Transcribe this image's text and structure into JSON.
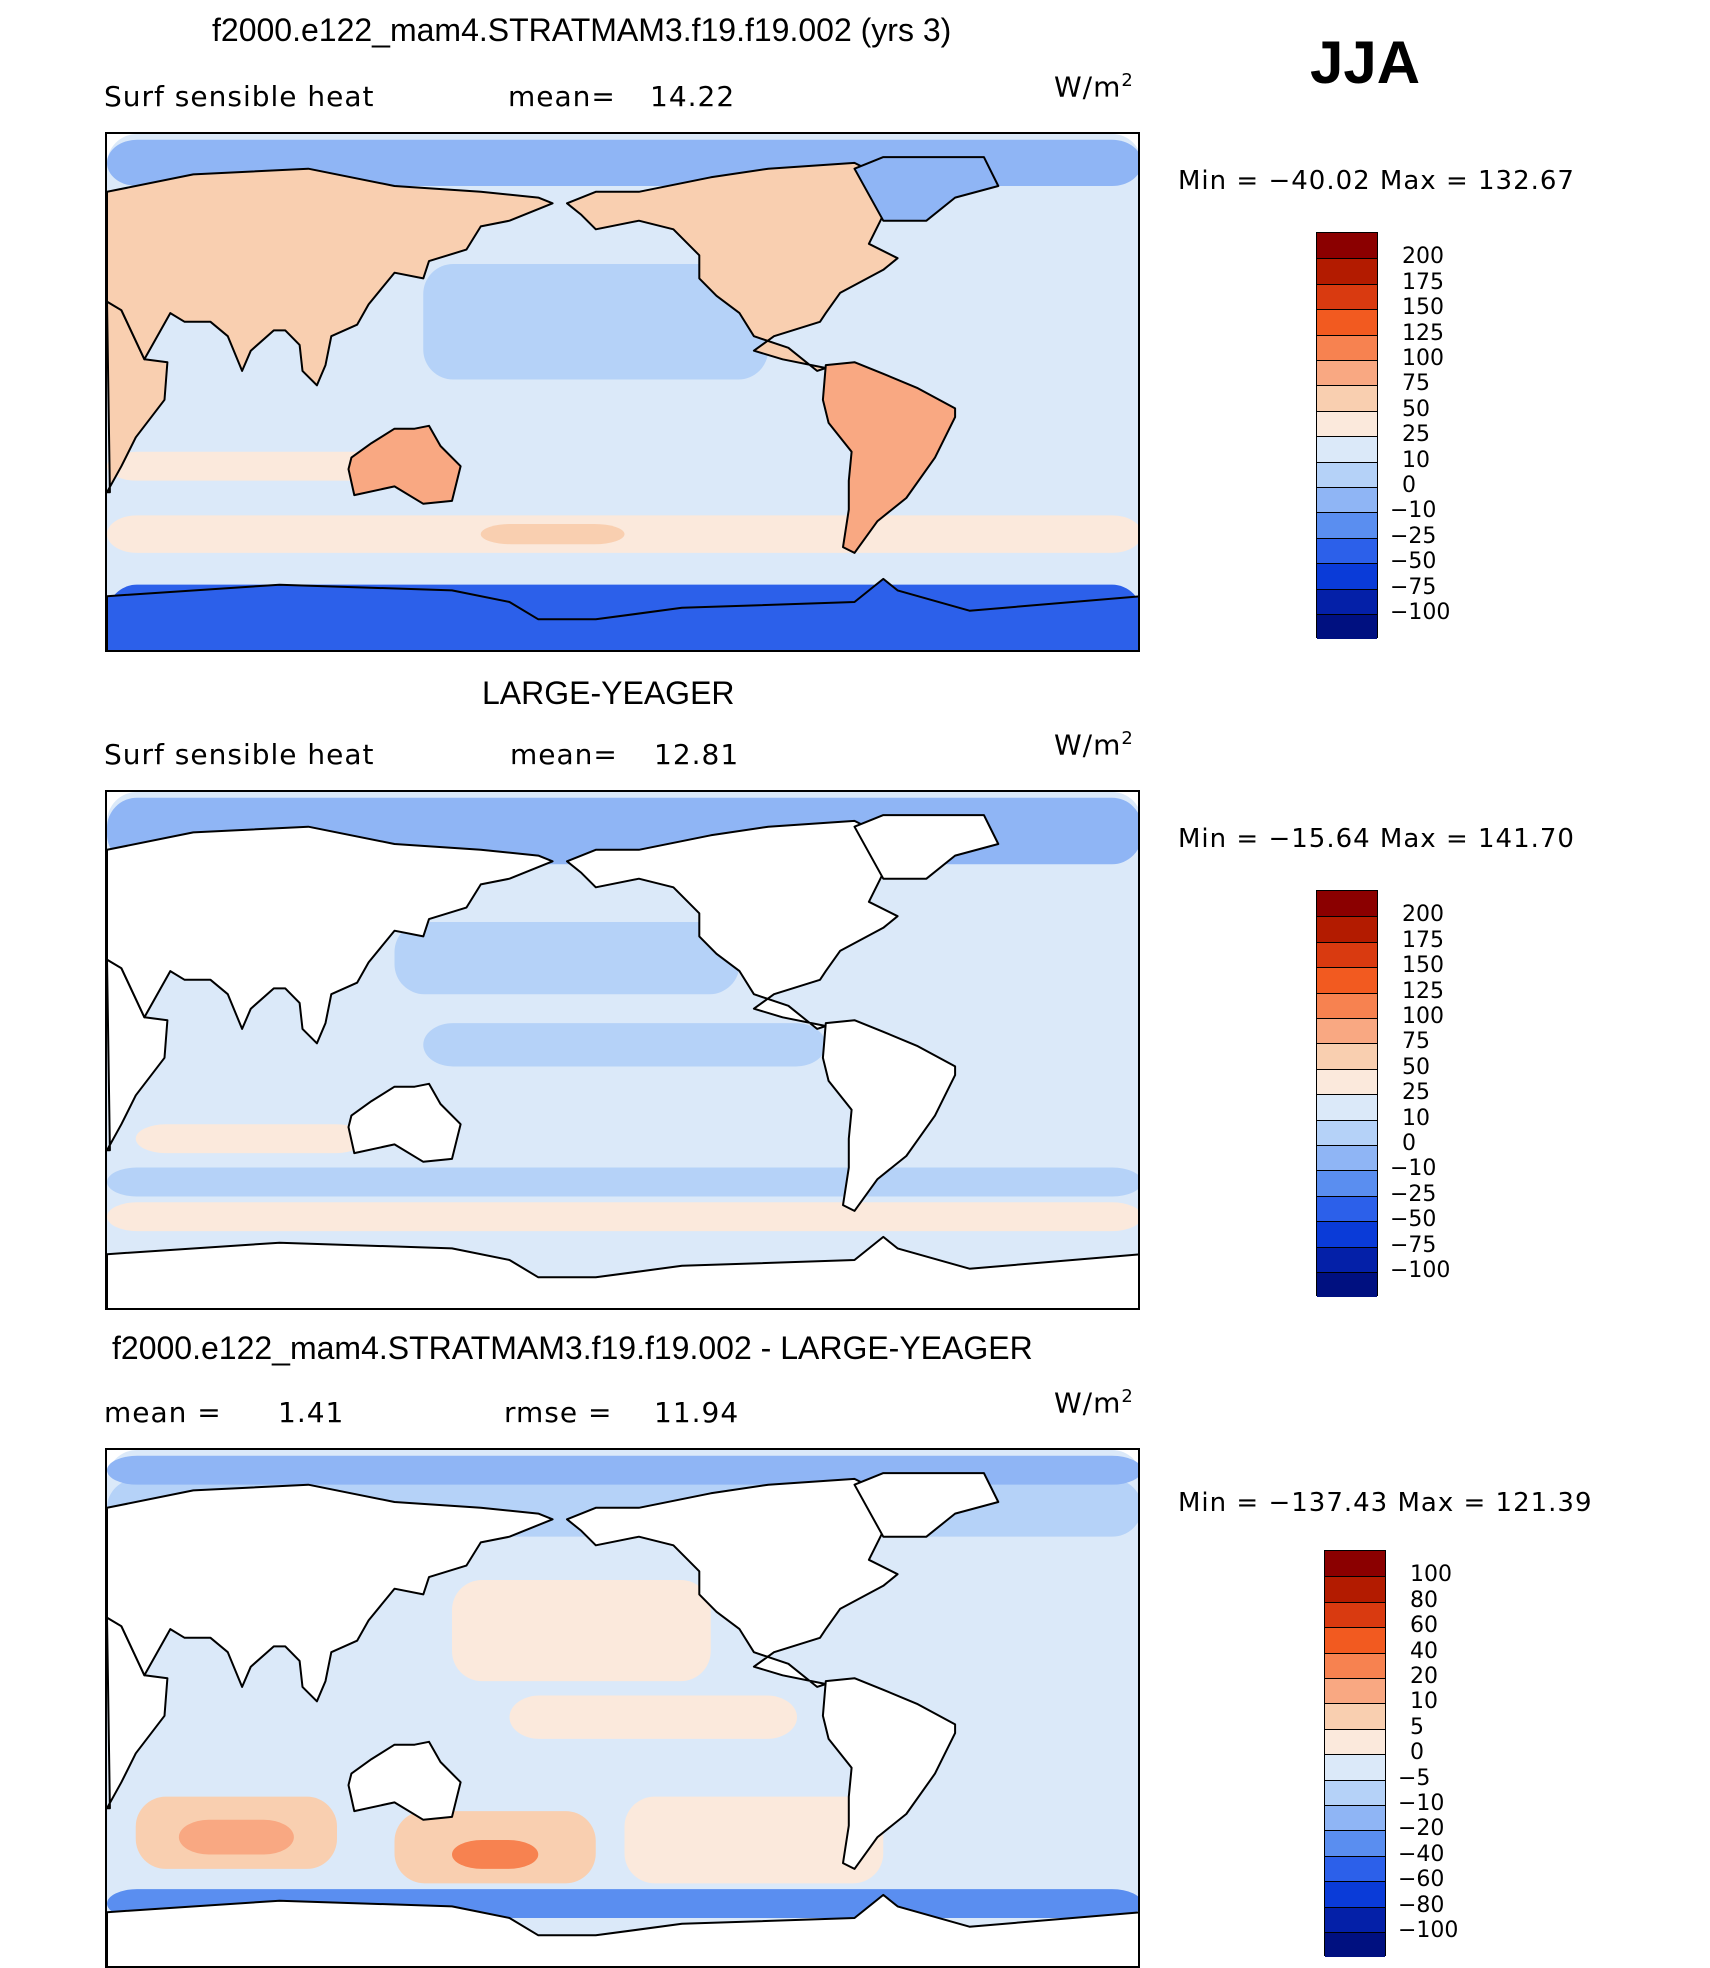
{
  "season": "JJA",
  "units_base": "W/m",
  "units_exp": "2",
  "panels": [
    {
      "title": "f2000.e122_mam4.STRATMAM3.f19.f19.002 (yrs 3)",
      "left_label": "Surf  sensible  heat",
      "stat_label": "mean=",
      "stat_value": "14.22",
      "minmax": "Min  =  −40.02  Max  =  132.67",
      "levels": [
        "200",
        "175",
        "150",
        "125",
        "100",
        "75",
        "50",
        "25",
        "10",
        "0",
        "−10",
        "−25",
        "−50",
        "−75",
        "−100"
      ],
      "colors": [
        "#8b0000",
        "#b31b00",
        "#d93a10",
        "#f25a20",
        "#f78250",
        "#f9a882",
        "#f9cfb0",
        "#fbe9dc",
        "#dbe9f9",
        "#b5d2f8",
        "#8fb5f5",
        "#5a8ef0",
        "#2c60ea",
        "#0a3bd8",
        "#0420a8",
        "#001080"
      ]
    },
    {
      "title": "LARGE-YEAGER",
      "left_label": "Surf  sensible  heat",
      "stat_label": "mean=",
      "stat_value": "12.81",
      "minmax": "Min  =  −15.64  Max  =  141.70",
      "levels": [
        "200",
        "175",
        "150",
        "125",
        "100",
        "75",
        "50",
        "25",
        "10",
        "0",
        "−10",
        "−25",
        "−50",
        "−75",
        "−100"
      ],
      "colors": [
        "#8b0000",
        "#b31b00",
        "#d93a10",
        "#f25a20",
        "#f78250",
        "#f9a882",
        "#f9cfb0",
        "#fbe9dc",
        "#dbe9f9",
        "#b5d2f8",
        "#8fb5f5",
        "#5a8ef0",
        "#2c60ea",
        "#0a3bd8",
        "#0420a8",
        "#001080"
      ]
    },
    {
      "title": "f2000.e122_mam4.STRATMAM3.f19.f19.002 - LARGE-YEAGER",
      "left_label": "mean  =",
      "left_value": "1.41",
      "stat_label": "rmse  =",
      "stat_value": "11.94",
      "minmax": "Min  =  −137.43  Max  =  121.39",
      "levels": [
        "100",
        "80",
        "60",
        "40",
        "20",
        "10",
        "5",
        "0",
        "−5",
        "−10",
        "−20",
        "−40",
        "−60",
        "−80",
        "−100"
      ],
      "colors": [
        "#8b0000",
        "#b31b00",
        "#d93a10",
        "#f25a20",
        "#f78250",
        "#f9a882",
        "#f9cfb0",
        "#fbe9dc",
        "#dbe9f9",
        "#b5d2f8",
        "#8fb5f5",
        "#5a8ef0",
        "#2c60ea",
        "#0a3bd8",
        "#0420a8",
        "#001080"
      ]
    }
  ],
  "chart_data": [
    {
      "type": "heatmap",
      "title": "f2000.e122_mam4.STRATMAM3.f19.f19.002 (yrs 3)",
      "variable": "Surf sensible heat",
      "units": "W/m2",
      "mean": 14.22,
      "min": -40.02,
      "max": 132.67,
      "contour_levels": [
        -100,
        -75,
        -50,
        -25,
        -10,
        0,
        10,
        25,
        50,
        75,
        100,
        125,
        150,
        175,
        200
      ]
    },
    {
      "type": "heatmap",
      "title": "LARGE-YEAGER",
      "variable": "Surf sensible heat",
      "units": "W/m2",
      "mean": 12.81,
      "min": -15.64,
      "max": 141.7,
      "contour_levels": [
        -100,
        -75,
        -50,
        -25,
        -10,
        0,
        10,
        25,
        50,
        75,
        100,
        125,
        150,
        175,
        200
      ]
    },
    {
      "type": "heatmap",
      "title": "f2000.e122_mam4.STRATMAM3.f19.f19.002 - LARGE-YEAGER",
      "units": "W/m2",
      "mean": 1.41,
      "rmse": 11.94,
      "min": -137.43,
      "max": 121.39,
      "contour_levels": [
        -100,
        -80,
        -60,
        -40,
        -20,
        -10,
        -5,
        0,
        5,
        10,
        20,
        40,
        60,
        80,
        100
      ]
    }
  ]
}
